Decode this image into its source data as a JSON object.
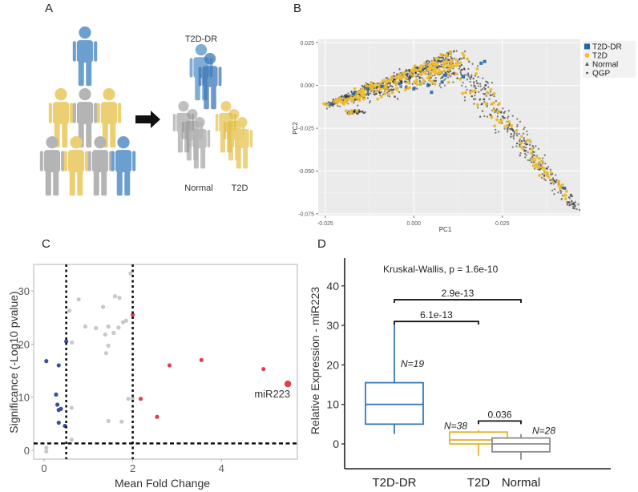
{
  "panels": {
    "a": {
      "letter": "A"
    },
    "b": {
      "letter": "B"
    },
    "c": {
      "letter": "C"
    },
    "d": {
      "letter": "D"
    }
  },
  "colors": {
    "blue": "#6a9fd0",
    "blue_dark": "#3b78b6",
    "yellow": "#eccf72",
    "yellow_dark": "#e2b93a",
    "grey": "#b4b4b4",
    "grey_dark": "#8f8f8f",
    "pca_blue": "#2166ac",
    "pca_yellow": "#f2c12e",
    "volcano_blue": "#3a4fa0",
    "volcano_red": "#e0404a",
    "volcano_grey": "#c8c8c8",
    "box_blue": "#3a78b8",
    "box_yellow": "#e5b42a",
    "box_grey": "#8c8c8c",
    "panel_bg": "#ebebeb"
  },
  "chart_data": [
    {
      "id": "A",
      "type": "diagram",
      "title": "",
      "group_labels": [
        "T2D-DR",
        "Normal",
        "T2D"
      ],
      "source_population": [
        "T2D-DR",
        "T2D",
        "Normal",
        "T2D",
        "Normal",
        "T2D",
        "T2D",
        "Normal",
        "T2D-DR"
      ],
      "arrow": "right"
    },
    {
      "id": "B",
      "type": "scatter",
      "xlabel": "PC1",
      "ylabel": "PC2",
      "xlim": [
        -0.027,
        0.047
      ],
      "ylim": [
        -0.076,
        0.027
      ],
      "xticks": [
        -0.025,
        0.0,
        0.025
      ],
      "xtick_labels": [
        "-0.025",
        "0.000",
        "0.025"
      ],
      "yticks": [
        0.025,
        0.0,
        -0.025,
        -0.05,
        -0.075
      ],
      "ytick_labels": [
        "0.025",
        "0.000",
        "-0.025",
        "-0.050",
        "-0.075"
      ],
      "grid": true,
      "legend_position": "right",
      "legend": [
        {
          "label": "T2D-DR",
          "marker": "square"
        },
        {
          "label": "T2D",
          "marker": "circle"
        },
        {
          "label": "Normal",
          "marker": "triangle"
        },
        {
          "label": "QGP",
          "marker": "dot"
        }
      ],
      "shape_description": "Dense cluster along an upper arm from (-0.025,-0.011) to (0.011,0.020), and a lower arm descending from (0.011,0.015) to (0.045,-0.070)",
      "arms": [
        {
          "from": [
            -0.0248,
            -0.011
          ],
          "to": [
            0.011,
            0.02
          ]
        },
        {
          "from": [
            0.011,
            0.016
          ],
          "to": [
            0.0455,
            -0.0705
          ]
        }
      ],
      "series_counts": {
        "QGP": 1400,
        "T2D": 260,
        "Normal": 120,
        "T2D-DR": 14
      }
    },
    {
      "id": "C",
      "type": "scatter",
      "xlabel": "Mean Fold Change",
      "ylabel": "Significance (-Log10 pvalue)",
      "xlim": [
        -0.3,
        5.7
      ],
      "ylim": [
        -1.5,
        35
      ],
      "xticks": [
        0,
        2,
        4
      ],
      "yticks": [
        0,
        10,
        20,
        30
      ],
      "thresholds": {
        "x": [
          0.5,
          2.0
        ],
        "y": [
          1.3
        ]
      },
      "annotation": {
        "text": "miR223",
        "x": 5.5,
        "y": 12.5
      },
      "series": [
        {
          "name": "down",
          "color_key": "volcano_blue",
          "points": [
            [
              0.05,
              16.8
            ],
            [
              0.33,
              16.0
            ],
            [
              0.27,
              10.5
            ],
            [
              0.3,
              8.6
            ],
            [
              0.33,
              7.6
            ],
            [
              0.38,
              7.8
            ],
            [
              0.33,
              5.2
            ],
            [
              0.47,
              4.6
            ],
            [
              0.5,
              20.5
            ]
          ]
        },
        {
          "name": "ns",
          "color_key": "volcano_grey",
          "points": [
            [
              0.05,
              0.5
            ],
            [
              0.05,
              -0.2
            ],
            [
              0.57,
              26.3
            ],
            [
              0.78,
              28.4
            ],
            [
              0.62,
              8.0
            ],
            [
              0.62,
              2.0
            ],
            [
              0.93,
              23.3
            ],
            [
              1.17,
              23.0
            ],
            [
              1.33,
              27.0
            ],
            [
              1.38,
              21.8
            ],
            [
              1.45,
              23.3
            ],
            [
              1.45,
              19.7
            ],
            [
              1.4,
              18.3
            ],
            [
              1.6,
              29.0
            ],
            [
              1.7,
              28.7
            ],
            [
              1.57,
              22.1
            ],
            [
              1.68,
              23.1
            ],
            [
              1.78,
              24.1
            ],
            [
              1.85,
              24.4
            ],
            [
              1.95,
              33.3
            ],
            [
              1.45,
              5.5
            ],
            [
              1.75,
              5.4
            ],
            [
              1.9,
              9.7
            ],
            [
              2.0,
              9.8
            ],
            [
              0.63,
              20.3
            ]
          ]
        },
        {
          "name": "up",
          "color_key": "volcano_red",
          "points": [
            [
              2.0,
              25.5
            ],
            [
              2.18,
              9.7
            ],
            [
              2.55,
              6.3
            ],
            [
              2.83,
              16.0
            ],
            [
              3.55,
              17.0
            ],
            [
              4.95,
              15.3
            ]
          ]
        },
        {
          "name": "highlight",
          "color_key": "volcano_red",
          "points": [
            [
              5.5,
              12.5
            ]
          ]
        }
      ]
    },
    {
      "id": "D",
      "type": "box",
      "ylabel": "Relative Expression - miR223",
      "ylim": [
        -6,
        46
      ],
      "yticks": [
        0,
        10,
        20,
        30,
        40
      ],
      "categories": [
        "T2D-DR",
        "T2D",
        "Normal"
      ],
      "title": "Kruskal-Wallis, p = 1.6e-10",
      "boxes": [
        {
          "category": "T2D-DR",
          "whisker_low": 2.5,
          "q1": 5.0,
          "median": 10.0,
          "q3": 15.5,
          "whisker_high": 30.5,
          "n_label": "N=19",
          "color_key": "box_blue"
        },
        {
          "category": "T2D",
          "whisker_low": -3.0,
          "q1": 0.0,
          "median": 1.0,
          "q3": 3.0,
          "whisker_high": 3.5,
          "n_label": "N=38",
          "color_key": "box_yellow"
        },
        {
          "category": "Normal",
          "whisker_low": -4.0,
          "q1": -2.0,
          "median": 0.0,
          "q3": 1.5,
          "whisker_high": 2.5,
          "n_label": "N=28",
          "color_key": "box_grey"
        }
      ],
      "comparisons": [
        {
          "from": "T2D-DR",
          "to": "Normal",
          "y": 36.5,
          "label": "2.9e-13"
        },
        {
          "from": "T2D-DR",
          "to": "T2D",
          "y": 31.0,
          "label": "6.1e-13"
        },
        {
          "from": "T2D",
          "to": "Normal",
          "y": 5.8,
          "label": "0.036"
        }
      ]
    }
  ]
}
